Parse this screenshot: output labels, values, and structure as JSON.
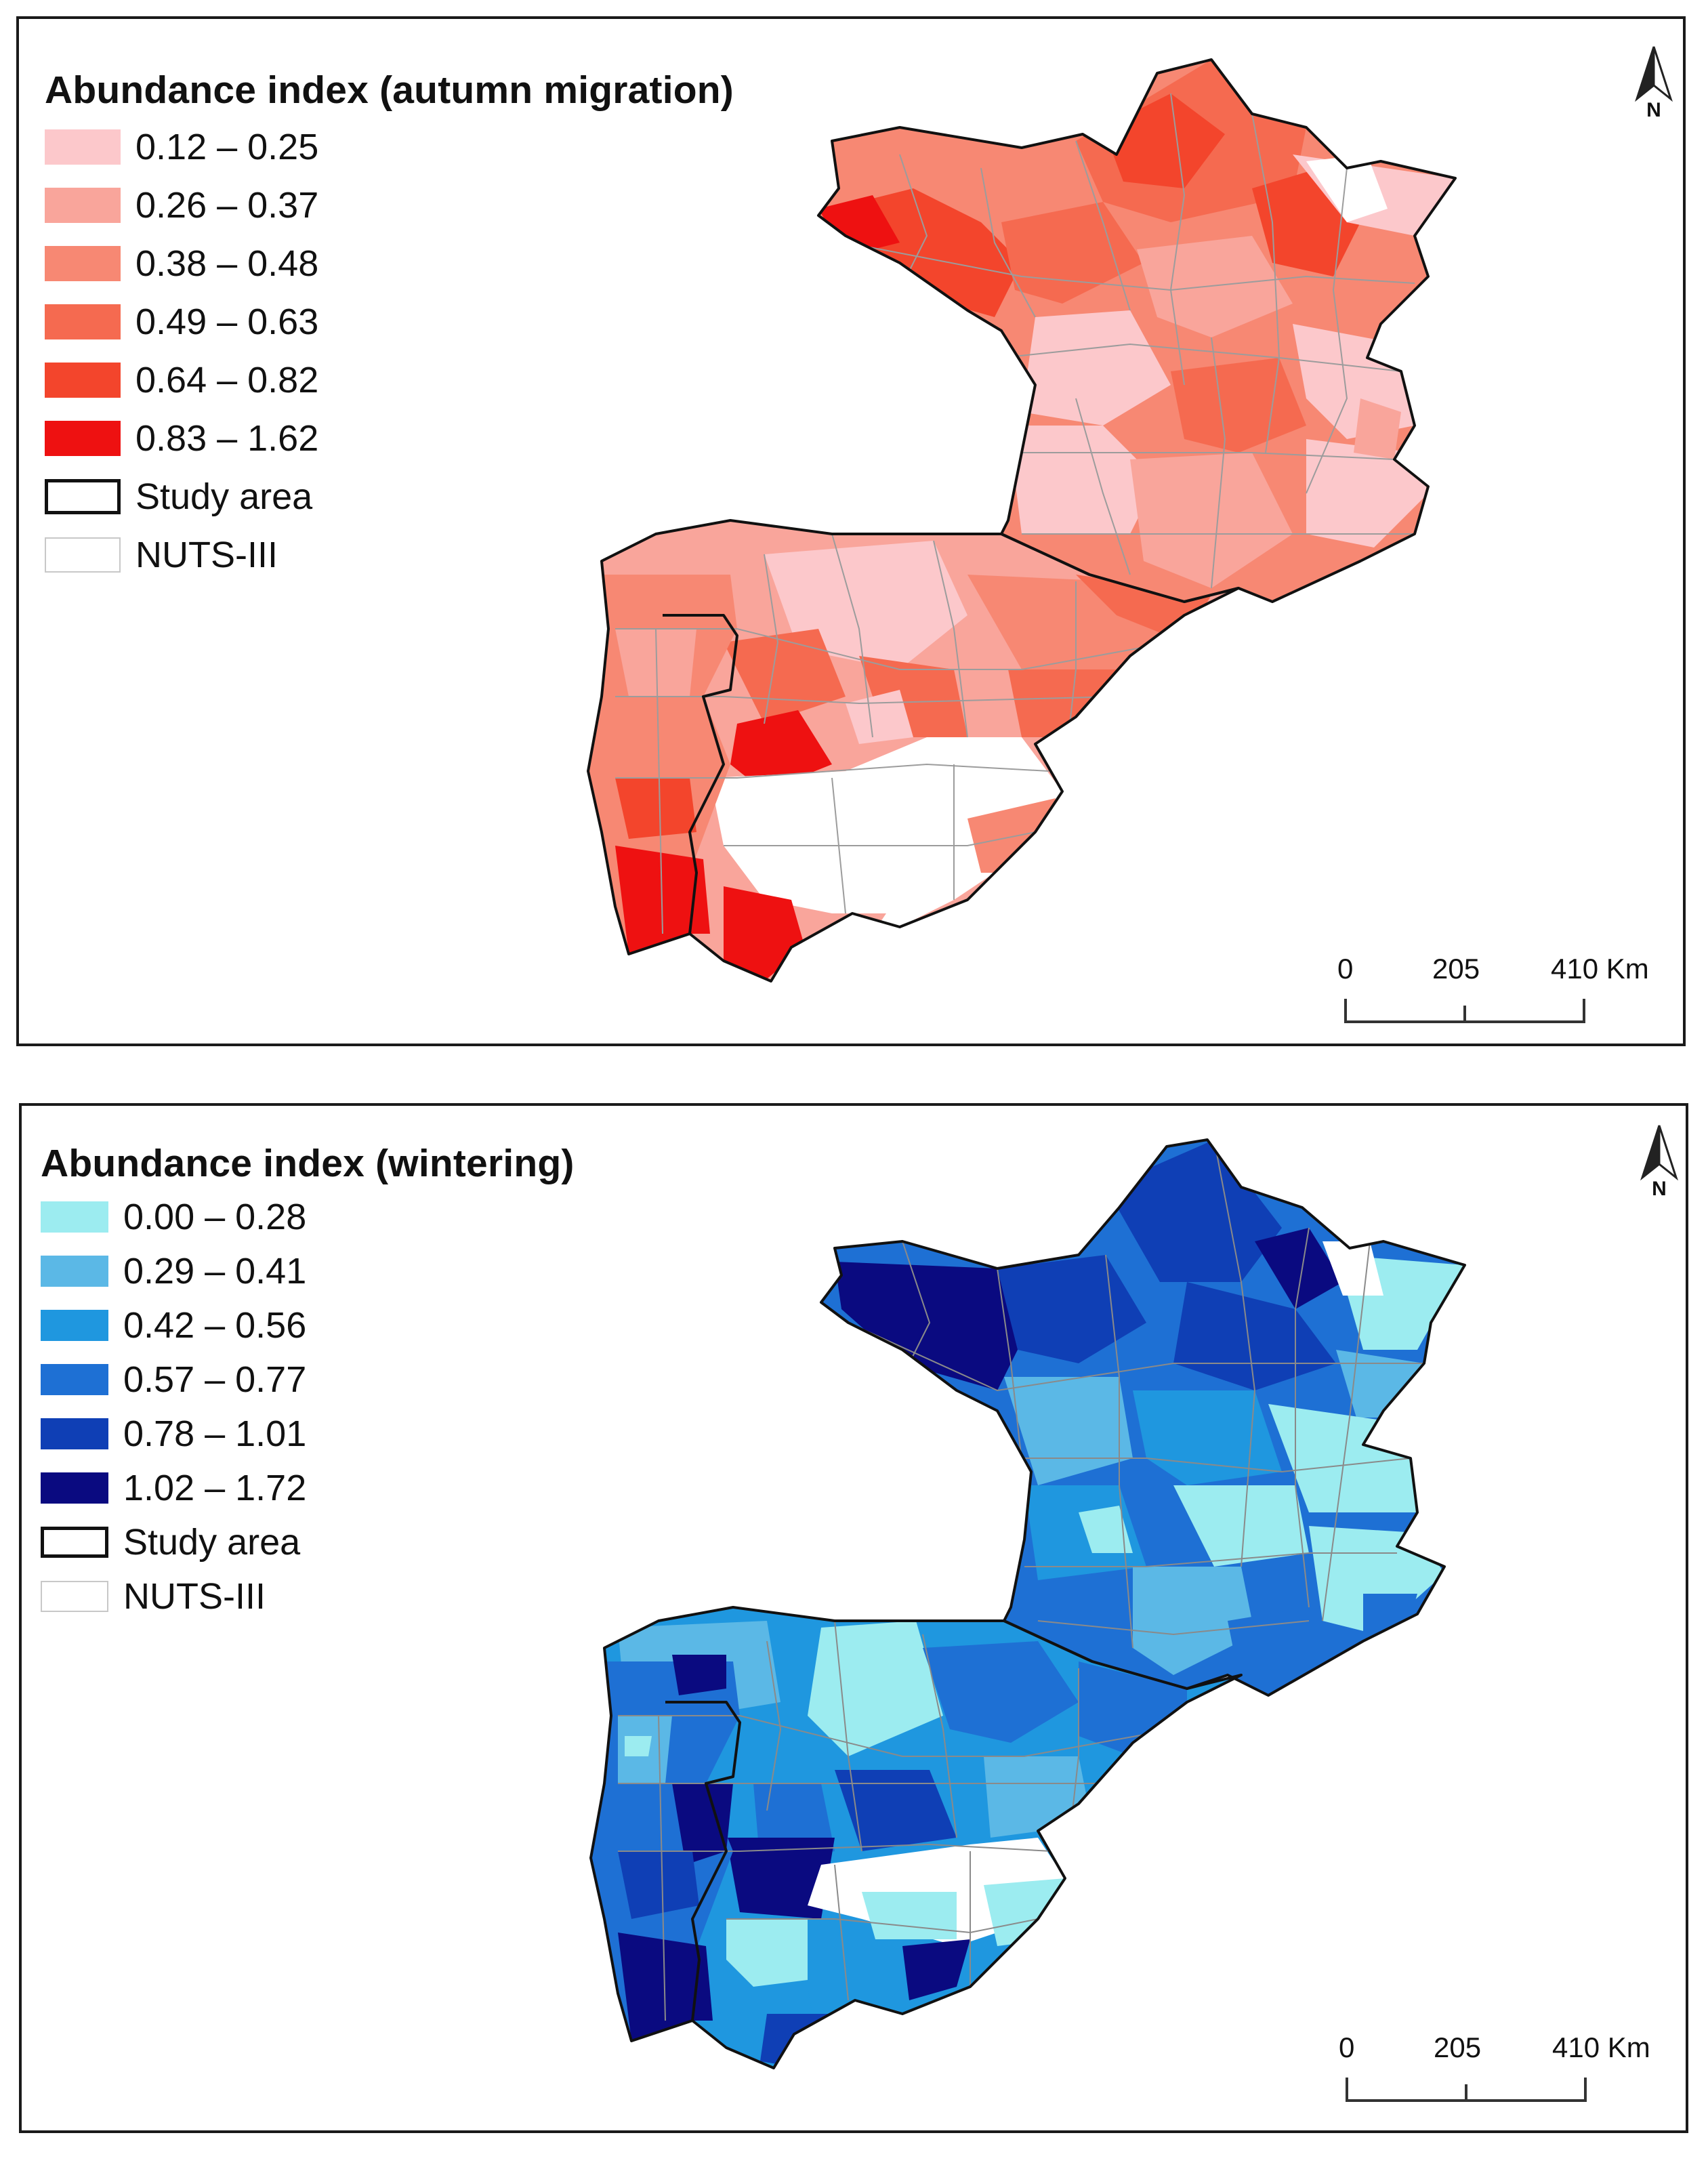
{
  "maps": [
    {
      "id": "autumn",
      "legend_title": "Abundance index (autumn migration)",
      "classes": [
        {
          "label": "0.12 – 0.25",
          "color": "#fcc8cb"
        },
        {
          "label": "0.26 – 0.37",
          "color": "#f9a59b"
        },
        {
          "label": "0.38 – 0.48",
          "color": "#f78873"
        },
        {
          "label": "0.49 – 0.63",
          "color": "#f56a50"
        },
        {
          "label": "0.64 – 0.82",
          "color": "#f3452c"
        },
        {
          "label": "0.83 – 1.62",
          "color": "#ee1111"
        }
      ],
      "study_area_label": "Study area",
      "nuts_label": "NUTS-III",
      "scale_labels": [
        "0",
        "205",
        "410 Km"
      ],
      "north_label": "N"
    },
    {
      "id": "wintering",
      "legend_title": "Abundance index (wintering)",
      "classes": [
        {
          "label": "0.00 – 0.28",
          "color": "#9cecf0"
        },
        {
          "label": "0.29 – 0.41",
          "color": "#5bb8e6"
        },
        {
          "label": "0.42 – 0.56",
          "color": "#1f97df"
        },
        {
          "label": "0.57 – 0.77",
          "color": "#1e70d4"
        },
        {
          "label": "0.78 – 1.01",
          "color": "#0f3fb5"
        },
        {
          "label": "1.02 – 1.72",
          "color": "#0a0a80"
        }
      ],
      "study_area_label": "Study area",
      "nuts_label": "NUTS-III",
      "scale_labels": [
        "0",
        "205",
        "410 Km"
      ],
      "north_label": "N"
    }
  ]
}
